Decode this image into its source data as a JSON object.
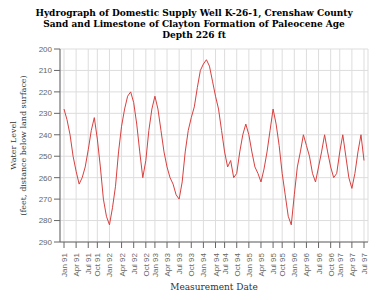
{
  "chart_data": {
    "type": "line",
    "title": "Hydrograph of Domestic Supply Well K-26-1, Crenshaw County\nSand and Limestone of Clayton Formation of Paleocene Age\nDepth 226 ft",
    "xlabel": "Measurement Date",
    "ylabel": "Water Level\n(feet, distance below land surface)",
    "categories": [
      "Jan 91",
      null,
      null,
      null,
      "Apr 91",
      null,
      null,
      null,
      "Jul 91",
      null,
      null,
      "Oct 91",
      null,
      null,
      null,
      "Jan 92",
      null,
      null,
      null,
      "Apr 92",
      null,
      null,
      null,
      "Jul 92",
      null,
      null,
      null,
      "Oct 92",
      null,
      null,
      "Jan 93",
      null,
      null,
      null,
      "Apr 93",
      null,
      null,
      null,
      "Jul 93",
      null,
      null,
      null,
      "Oct 93",
      null,
      null,
      null,
      "Jan 94",
      null,
      null,
      null,
      "Apr 94",
      null,
      null,
      "Jul 94",
      null,
      null,
      null,
      "Oct 94",
      null,
      null,
      null,
      "Jan 95",
      null,
      null,
      null,
      "Apr 95",
      null,
      null,
      null,
      "Jul 95",
      null,
      null,
      "Oct 95",
      null,
      null,
      null,
      "Jan 96",
      null,
      null,
      null,
      "Apr 96",
      null,
      null,
      null,
      "Jul 96",
      null,
      null,
      null,
      "Oct 96",
      null,
      null,
      "Jan 97",
      null,
      null,
      null,
      "Apr 97",
      null,
      null,
      null,
      "Jul 97"
    ],
    "values": [
      228,
      233,
      240,
      250,
      257,
      263,
      260,
      255,
      247,
      238,
      232,
      242,
      255,
      270,
      278,
      282,
      274,
      264,
      248,
      236,
      228,
      222,
      220,
      225,
      235,
      248,
      260,
      252,
      238,
      228,
      222,
      228,
      238,
      248,
      255,
      260,
      263,
      268,
      270,
      262,
      248,
      238,
      232,
      227,
      218,
      210,
      207,
      205,
      208,
      215,
      222,
      228,
      238,
      248,
      255,
      252,
      260,
      258,
      248,
      240,
      235,
      240,
      248,
      255,
      258,
      262,
      256,
      248,
      238,
      228,
      235,
      245,
      258,
      268,
      278,
      282,
      268,
      255,
      248,
      240,
      245,
      250,
      258,
      262,
      255,
      248,
      240,
      248,
      255,
      260,
      258,
      248,
      240,
      250,
      260,
      265,
      258,
      248,
      240,
      252
    ],
    "color": "#d94040",
    "ylim": [
      290,
      200
    ],
    "yticks": [
      200,
      210,
      220,
      230,
      240,
      250,
      260,
      270,
      280,
      290
    ],
    "grid": true
  }
}
